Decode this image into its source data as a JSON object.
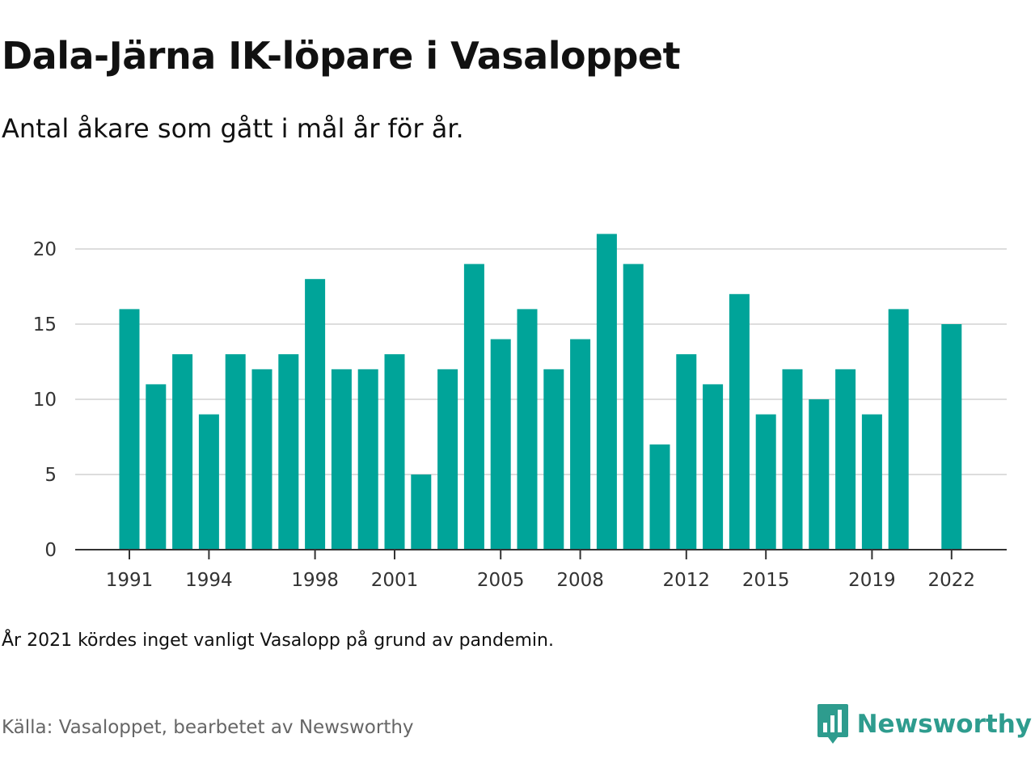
{
  "title": "Dala-Järna IK-löpare i Vasaloppet",
  "subtitle": "Antal åkare som gått i mål år för år.",
  "note": "År 2021 kördes inget vanligt Vasalopp på grund av pandemin.",
  "source": "Källa: Vasaloppet, bearbetet av Newsworthy",
  "brand": {
    "name": "Newsworthy",
    "logo_icon": "newsworthy-logo-icon",
    "color": "#2e9c8e"
  },
  "colors": {
    "bar": "#00a499",
    "grid": "#dddddd",
    "axis": "#333333"
  },
  "chart_data": {
    "type": "bar",
    "x": [
      1991,
      1992,
      1993,
      1994,
      1995,
      1996,
      1997,
      1998,
      1999,
      2000,
      2001,
      2002,
      2003,
      2004,
      2005,
      2006,
      2007,
      2008,
      2009,
      2010,
      2011,
      2012,
      2013,
      2014,
      2015,
      2016,
      2017,
      2018,
      2019,
      2020,
      2021,
      2022
    ],
    "values": [
      16,
      11,
      13,
      9,
      13,
      12,
      13,
      18,
      12,
      12,
      13,
      5,
      12,
      19,
      14,
      16,
      12,
      14,
      21,
      19,
      7,
      13,
      11,
      17,
      9,
      12,
      10,
      12,
      9,
      16,
      null,
      15
    ],
    "x_tick_labels": [
      "1991",
      "1994",
      "1998",
      "2001",
      "2005",
      "2008",
      "2012",
      "2015",
      "2019",
      "2022"
    ],
    "y_ticks": [
      0,
      5,
      10,
      15,
      20
    ],
    "ylim": [
      0,
      21
    ],
    "xlabel": "",
    "ylabel": "",
    "grid": "horizontal",
    "legend": "none"
  }
}
